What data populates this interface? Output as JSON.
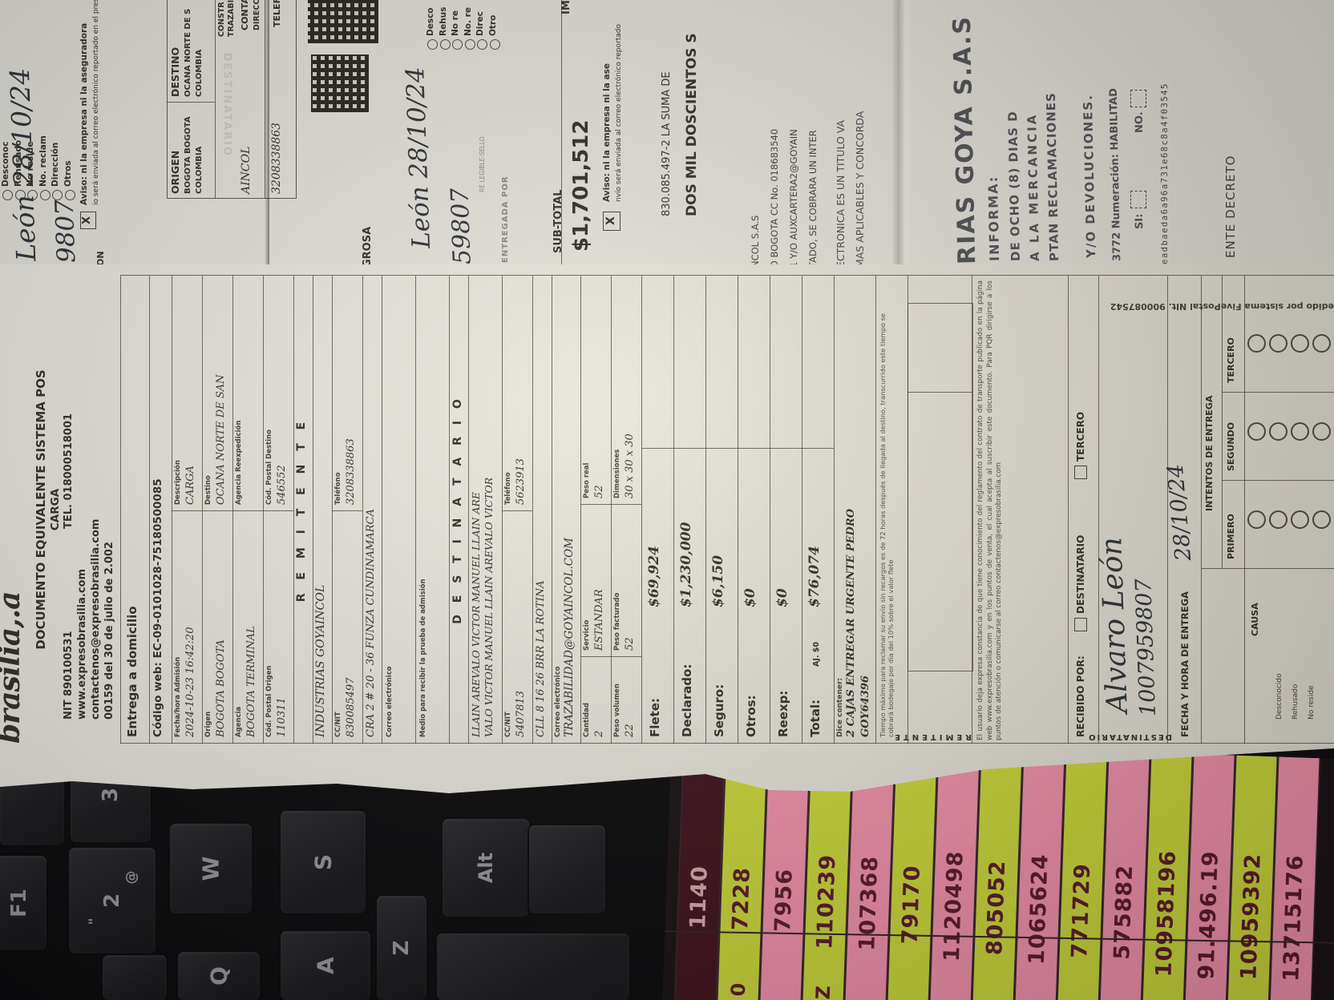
{
  "colors": {
    "sheet_yellow": "#ccd93b",
    "sheet_pink": "#f392ad",
    "sheet_maroon": "#42141f",
    "sheet_number": "#5c1c2d",
    "paper": "#e9e6de",
    "ink": "#34322c",
    "key_bg": "#232327"
  },
  "receipt": {
    "header": {
      "logo": "brasilia,.a",
      "title": "DOCUMENTO EQUIVALENTE SISTEMA POS",
      "subtitle": "CARGA",
      "nit": "NIT 890100531",
      "tel": "TEL. 018000518001",
      "web": "www.expresobrasilia.com",
      "email": "contactenos@expresobrasilia.com",
      "resolution": "00159 del 30 de julio de 2.002"
    },
    "entrega": "Entrega a domicilio",
    "codigo_web": "Código web:  EC-09-0101028-75180500085",
    "info_rows": [
      {
        "cells": [
          {
            "label": "Fecha/hora Admisión",
            "value": "2024-10-23 16:42:20"
          },
          {
            "label": "Descripción",
            "value": "CARGA"
          }
        ]
      },
      {
        "cells": [
          {
            "label": "Origen",
            "value": "BOGOTA BOGOTA"
          },
          {
            "label": "Destino",
            "value": "OCANA NORTE DE SAN"
          }
        ]
      },
      {
        "cells": [
          {
            "label": "Agencia",
            "value": "BOGOTA TERMINAL"
          },
          {
            "label": "Agencia Reexpedición",
            "value": ""
          }
        ]
      },
      {
        "cells": [
          {
            "label": "Cód. Postal Origen",
            "value": "110311"
          },
          {
            "label": "Cód. Postal Destino",
            "value": "546552"
          }
        ]
      }
    ],
    "remitente": {
      "title": "R E M I T E N T E",
      "name": "INDUSTRIAS  GOYAINCOL",
      "ccnit_label": "CC/NIT",
      "ccnit": "830085497",
      "tel_label": "Teléfono",
      "tel": "3208338863",
      "address": "CRA 2 # 20 - 36 FUNZA CUNDINAMARCA",
      "correo_label": "Correo electrónico",
      "medio_label": "Medio para recibir la prueba de admisión"
    },
    "destinatario": {
      "title": "D E S T I N A T A R I O",
      "name1": "LLAIN AREVALO VICTOR MANUEL LLAIN ARE",
      "name2": "VALO VICTOR MANUEL LLAIN AREVALO VICTOR",
      "ccnit_label": "CC/NIT",
      "ccnit": "5407813",
      "tel_label": "Teléfono",
      "tel": "5623913",
      "address": "CLL 8 16 26 BRR LA ROTINA",
      "correo_label": "Correo electrónico",
      "correo": "TRAZABILIDAD@GOYAINCOL.COM"
    },
    "package_rows": [
      {
        "cells": [
          {
            "label": "Cantidad",
            "value": "2"
          },
          {
            "label": "Servicio",
            "value": "ESTANDAR"
          },
          {
            "label": "Peso real",
            "value": "52"
          }
        ]
      },
      {
        "cells": [
          {
            "label": "Peso volumen",
            "value": "22"
          },
          {
            "label": "Peso facturado",
            "value": "52"
          },
          {
            "label": "Dimensiones",
            "value": "30 x 30 x 30"
          }
        ]
      }
    ],
    "charges": [
      {
        "label": "Flete:",
        "value": "$69,924"
      },
      {
        "label": "Declarado:",
        "value": "$1,230,000"
      },
      {
        "label": "Seguro:",
        "value": "$6,150"
      },
      {
        "label": "Otros:",
        "value": "$0"
      },
      {
        "label": "Reexp:",
        "value": "$0"
      },
      {
        "label": "Total:",
        "aj": "AJ. $0",
        "value": "$76,074"
      }
    ],
    "contents": {
      "label": "Dice contener:",
      "line1": "2 CAJAS ENTREGAR URGENTE PEDRO",
      "line2": "GOY64396"
    },
    "fine_print_1": "Tiempo máximo para reclamar su envío sin recargos es de 72 horas después de llegada al destino, transcurrido este tiempo se cobrará bodegaje por día del 10% sobre el valor flete",
    "remitente_box_label": "REMITENTE",
    "fine_print_2": "El usuario deja expresa constancia de que tiene conocimiento del reglamento del contrato de transporte publicado en la página web www.expresobrasilia.com y en los puntos de venta, el cual acepta al suscribir este documento. Para PQR dirigirse a los puntos de atención o comunicarse al correo contactenos@expresobrasilia.com",
    "recibido": {
      "label": "RECIBIDO POR:",
      "opt1": "DESTINATARIO",
      "opt2": "TERCERO",
      "firma": "Alvaro León",
      "cedula": "1007959807",
      "edge_label": "DESTINATARIO"
    },
    "fecha_entrega": {
      "label": "FECHA Y HORA DE ENTREGA",
      "value": "28/10/24"
    },
    "intentos": {
      "label": "INTENTOS DE ENTREGA",
      "cols": [
        "PRIMERO",
        "SEGUNDO",
        "TERCERO"
      ]
    },
    "causa": {
      "label": "CAUSA",
      "options": [
        "Desconocido",
        "Rehusado",
        "No reside"
      ]
    },
    "edge_print": "edido por sistema FivePostal NIt. 900087542"
  },
  "top_doc": {
    "radio_options_1": [
      "Desconoc",
      "Rehusado",
      "No reside",
      "No. reclam",
      "Dirección",
      "Otros"
    ],
    "aviso_x": "X",
    "aviso_1": "Aviso: ni la empresa ni la aseguradora",
    "aviso_2": "io será enviada al correo electrónico reportado en el pres",
    "sig1_name": "León  28/10/24",
    "sig1_id": "9807",
    "frag_on": "ON",
    "origen": {
      "label": "ORIGEN",
      "l1": "BOGOTA BOGOTA",
      "l2": "COLOMBIA"
    },
    "destino": {
      "label": "DESTINO",
      "l1": "OCANA NORTE DE S",
      "l2": "COLOMBIA"
    },
    "cut_constr": "CONSTR",
    "cut_trazabil": "TRAZABIL",
    "cut_conta": "CONTA",
    "cut_direcc": "DIRECC",
    "cut_telef": "TELEF",
    "watermark": "DESTINATARIO",
    "aincol": "AINCOL",
    "phone": "3208338863",
    "grosa": "GROSA",
    "sig2_name": "León  28/10/24",
    "sig2_id": "59807",
    "nombre_legible": "RE LEGIBLE-SELLO",
    "entregada_por": "ENTREGADA POR",
    "aviso2_x": "X",
    "aviso2_1": "Aviso: ni la empresa ni la ase",
    "aviso2_2": "nvío será enviada al correo electrónico reportado",
    "radio_options_2": [
      "Desco",
      "Rehus",
      "No re",
      "No. re",
      "Direc",
      "Otro"
    ],
    "sub_total_label": "SUB-TOTAL",
    "sub_total": "$1,701,512",
    "im_frag": "IM",
    "suma_line": "830.085.497-2 LA SUMA DE",
    "suma_bold": "DOS MIL DOSCIENTOS S",
    "tiny_lines": [
      "NCOL S.A.S",
      "D BOGOTA CC No. 018683540",
      "1 Y/O AUXCARTERA2@GOYAIN",
      "TADO, SE COBRARA UN INTER"
    ],
    "titulo_lines": [
      "ECTRONICA ES UN TITULO VA",
      "MAS APLICABLES Y CONCORDA"
    ],
    "stamp": {
      "name": "RIAS GOYA S.A.S",
      "informa": "INFORMA:",
      "l1": "DE OCHO (8) DIAS D",
      "l2": "A  LA  MERCANCIA",
      "l3": "PTAN RECLAMACIONES",
      "l4": "Y/O  DEVOLUCIONES.",
      "l5": "3772 Numeración: HABILITAD",
      "si": "SI:",
      "no": "NO."
    },
    "hash_line": "eadbaeda6a96a731e68c8a4f03545",
    "decreto_frag": "ENTE DECRETO"
  },
  "keyboard": {
    "keys": [
      "F",
      "F1",
      "3",
      "2",
      "Q",
      "W",
      "A",
      "S",
      "Z",
      "Alt",
      "",
      "",
      "",
      ""
    ],
    "key2_sup": "@",
    "key2_sub": "\""
  },
  "sheet": {
    "rows": [
      {
        "value": "1140",
        "color": "maroon",
        "next": ""
      },
      {
        "value": "7228",
        "color": "yellow",
        "next": "0"
      },
      {
        "value": "7956",
        "color": "pink",
        "next": ""
      },
      {
        "value": "110239",
        "color": "yellow",
        "next": "Z"
      },
      {
        "value": "107368",
        "color": "pink",
        "next": ""
      },
      {
        "value": "79170",
        "color": "yellow",
        "next": ""
      },
      {
        "value": "1120498",
        "color": "pink",
        "next": ""
      },
      {
        "value": "805052",
        "color": "yellow",
        "next": ""
      },
      {
        "value": "1065624",
        "color": "pink",
        "next": ""
      },
      {
        "value": "771729",
        "color": "yellow",
        "next": ""
      },
      {
        "value": "575882",
        "color": "pink",
        "next": ""
      },
      {
        "value": "10958196",
        "color": "yellow",
        "next": ""
      },
      {
        "value": "91.496.19",
        "color": "pink",
        "next": ""
      },
      {
        "value": "10959392",
        "color": "yellow",
        "next": ""
      },
      {
        "value": "13715176",
        "color": "pink",
        "next": ""
      }
    ]
  }
}
